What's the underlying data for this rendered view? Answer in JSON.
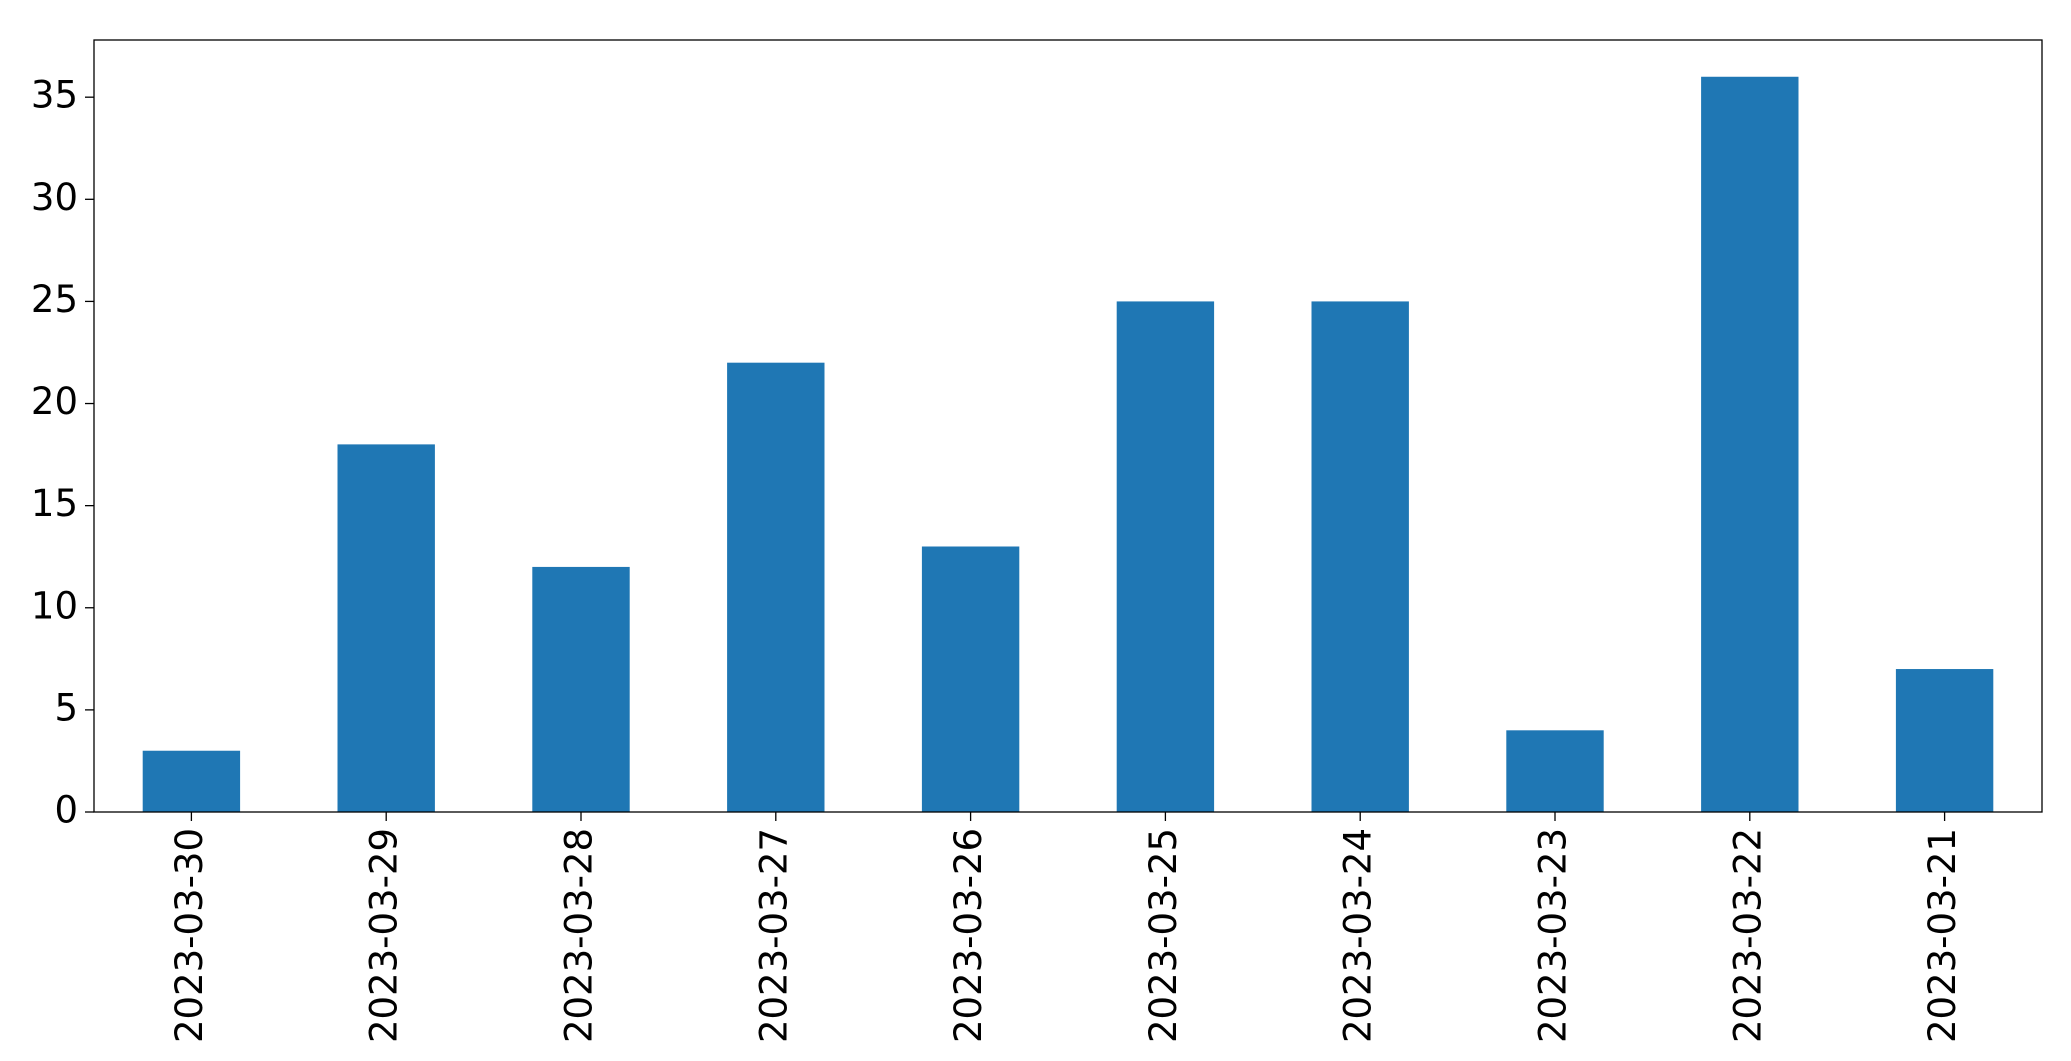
{
  "chart_data": {
    "type": "bar",
    "categories": [
      "2023-03-30",
      "2023-03-29",
      "2023-03-28",
      "2023-03-27",
      "2023-03-26",
      "2023-03-25",
      "2023-03-24",
      "2023-03-23",
      "2023-03-22",
      "2023-03-21"
    ],
    "values": [
      3,
      18,
      12,
      22,
      13,
      25,
      25,
      4,
      36,
      7
    ],
    "color": "#1f77b4",
    "ylim": [
      0,
      37.8
    ],
    "yticks": [
      0,
      5,
      10,
      15,
      20,
      25,
      30,
      35
    ],
    "grid": false
  }
}
